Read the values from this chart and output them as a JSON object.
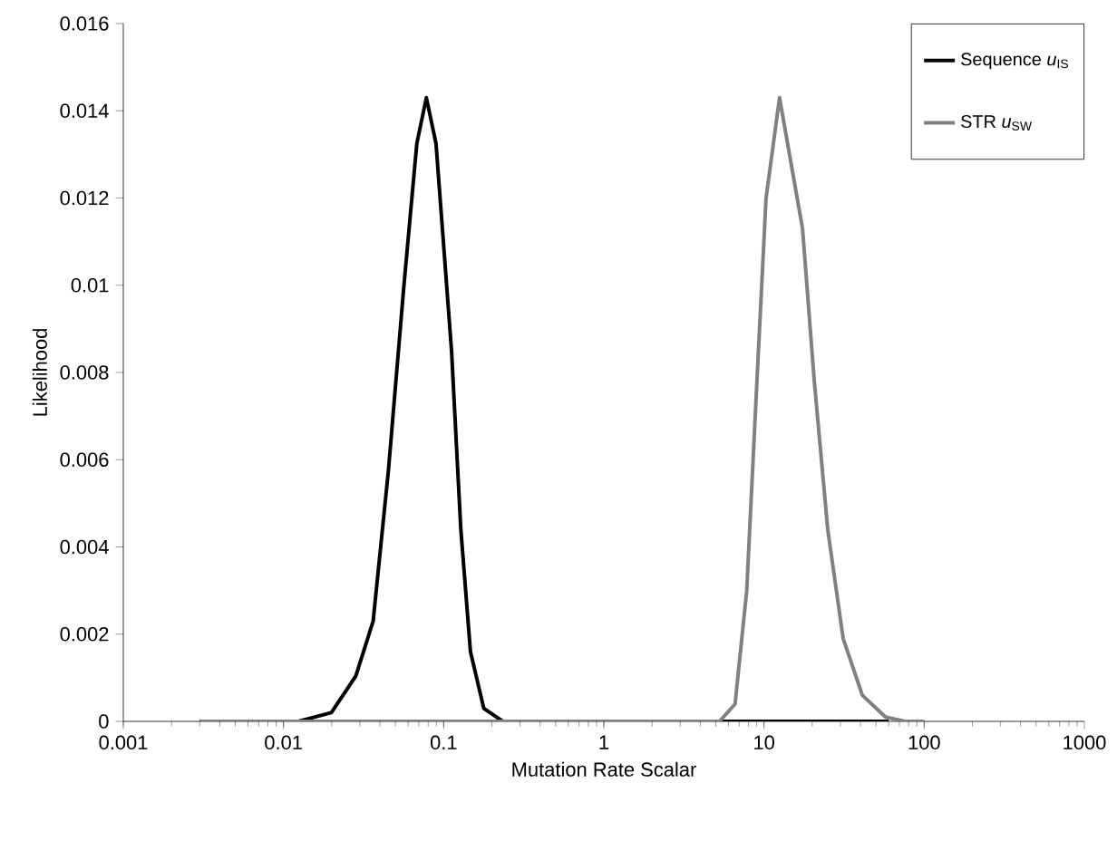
{
  "chart_data": {
    "type": "line",
    "xlabel": "Mutation Rate Scalar",
    "ylabel": "Likelihood",
    "log": "x",
    "xlim": [
      0.001,
      1000
    ],
    "ylim": [
      0,
      0.016
    ],
    "xticks": [
      0.001,
      0.01,
      0.1,
      1,
      10,
      100,
      1000
    ],
    "yticks": [
      0,
      0.002,
      0.004,
      0.006,
      0.008,
      0.01,
      0.012,
      0.014,
      0.016
    ],
    "grid": false,
    "legend": "top right",
    "marker": "none",
    "line_style": "solid",
    "series": [
      {
        "name": "Sequence *u*$_{IS}$",
        "color": "#000000",
        "x": [
          0.003,
          0.0124,
          0.0199,
          0.0283,
          0.0363,
          0.0452,
          0.0562,
          0.068,
          0.078,
          0.0896,
          0.112,
          0.128,
          0.147,
          0.178,
          0.234,
          0.5,
          5,
          60
        ],
        "values": [
          0,
          0,
          0.0002,
          0.00104,
          0.0023,
          0.00575,
          0.0099,
          0.01325,
          0.0143,
          0.01325,
          0.0085,
          0.0044,
          0.0016,
          0.0003,
          0,
          0,
          0,
          0
        ]
      },
      {
        "name": "STR *u*$_{SW}$",
        "color": "#808080",
        "x": [
          0.003,
          0.01,
          1,
          5.28,
          6.6,
          7.8,
          8.95,
          10.3,
          12.5,
          17.4,
          20.6,
          25,
          31.2,
          41.1,
          57.4,
          75.9,
          100
        ],
        "values": [
          0,
          0,
          0,
          0,
          0.0004,
          0.003,
          0.0075,
          0.012,
          0.0143,
          0.0113,
          0.0078,
          0.0044,
          0.0019,
          0.0006,
          0.0001,
          0,
          0
        ]
      }
    ]
  }
}
